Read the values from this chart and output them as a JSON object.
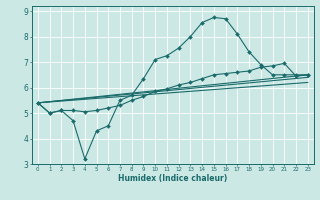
{
  "xlabel": "Humidex (Indice chaleur)",
  "bg_color": "#cce8e5",
  "line_color": "#1a6b6b",
  "grid_color": "#ffffff",
  "xlim": [
    -0.5,
    23.5
  ],
  "ylim": [
    3,
    9.2
  ],
  "xticks": [
    0,
    1,
    2,
    3,
    4,
    5,
    6,
    7,
    8,
    9,
    10,
    11,
    12,
    13,
    14,
    15,
    16,
    17,
    18,
    19,
    20,
    21,
    22,
    23
  ],
  "yticks": [
    3,
    4,
    5,
    6,
    7,
    8,
    9
  ],
  "series": [
    {
      "x": [
        0,
        1,
        2,
        3,
        4,
        5,
        6,
        7,
        8,
        9,
        10,
        11,
        12,
        13,
        14,
        15,
        16,
        17,
        18,
        19,
        20,
        21,
        22,
        23
      ],
      "y": [
        5.4,
        5.0,
        5.1,
        4.7,
        3.2,
        4.3,
        4.5,
        5.5,
        5.7,
        6.35,
        7.1,
        7.25,
        7.55,
        8.0,
        8.55,
        8.75,
        8.7,
        8.1,
        7.4,
        6.9,
        6.5,
        6.5,
        6.5,
        6.5
      ],
      "marker": "D",
      "markersize": 2.0
    },
    {
      "x": [
        0,
        1,
        2,
        3,
        4,
        5,
        6,
        7,
        8,
        9,
        10,
        11,
        12,
        13,
        14,
        15,
        16,
        17,
        18,
        19,
        20,
        21,
        22,
        23
      ],
      "y": [
        5.4,
        5.0,
        5.1,
        5.1,
        5.05,
        5.1,
        5.2,
        5.3,
        5.5,
        5.65,
        5.85,
        5.95,
        6.1,
        6.2,
        6.35,
        6.5,
        6.55,
        6.6,
        6.65,
        6.8,
        6.85,
        6.95,
        6.45,
        6.5
      ],
      "marker": "D",
      "markersize": 2.0
    },
    {
      "x": [
        0,
        23
      ],
      "y": [
        5.4,
        6.5
      ],
      "marker": null,
      "markersize": 0
    },
    {
      "x": [
        0,
        23
      ],
      "y": [
        5.4,
        6.2
      ],
      "marker": null,
      "markersize": 0
    },
    {
      "x": [
        0,
        23
      ],
      "y": [
        5.4,
        6.4
      ],
      "marker": null,
      "markersize": 0
    }
  ]
}
